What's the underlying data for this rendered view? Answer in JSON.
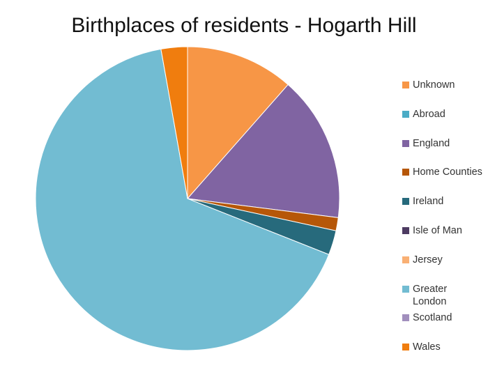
{
  "chart_data": {
    "type": "pie",
    "title": "Birthplaces of residents - Hogarth Hill",
    "legend_position": "right",
    "start_angle_deg": 0,
    "direction": "clockwise",
    "slices": [
      {
        "label": "Unknown",
        "value": 11.5,
        "color": "#F79646"
      },
      {
        "label": "Abroad",
        "value": 0,
        "color": "#4BACC6"
      },
      {
        "label": "England",
        "value": 15.5,
        "color": "#8064A2"
      },
      {
        "label": "Home Counties",
        "value": 1.4,
        "color": "#B65708"
      },
      {
        "label": "Ireland",
        "value": 2.6,
        "color": "#276A7C"
      },
      {
        "label": "Isle of Man",
        "value": 0,
        "color": "#4D3B62"
      },
      {
        "label": "Jersey",
        "value": 0,
        "color": "#F9B074"
      },
      {
        "label": "Greater London",
        "value": 66.2,
        "color": "#72BCD2"
      },
      {
        "label": "Scotland",
        "value": 0,
        "color": "#A18FBD"
      },
      {
        "label": "Wales",
        "value": 2.8,
        "color": "#F07D0E"
      }
    ]
  }
}
